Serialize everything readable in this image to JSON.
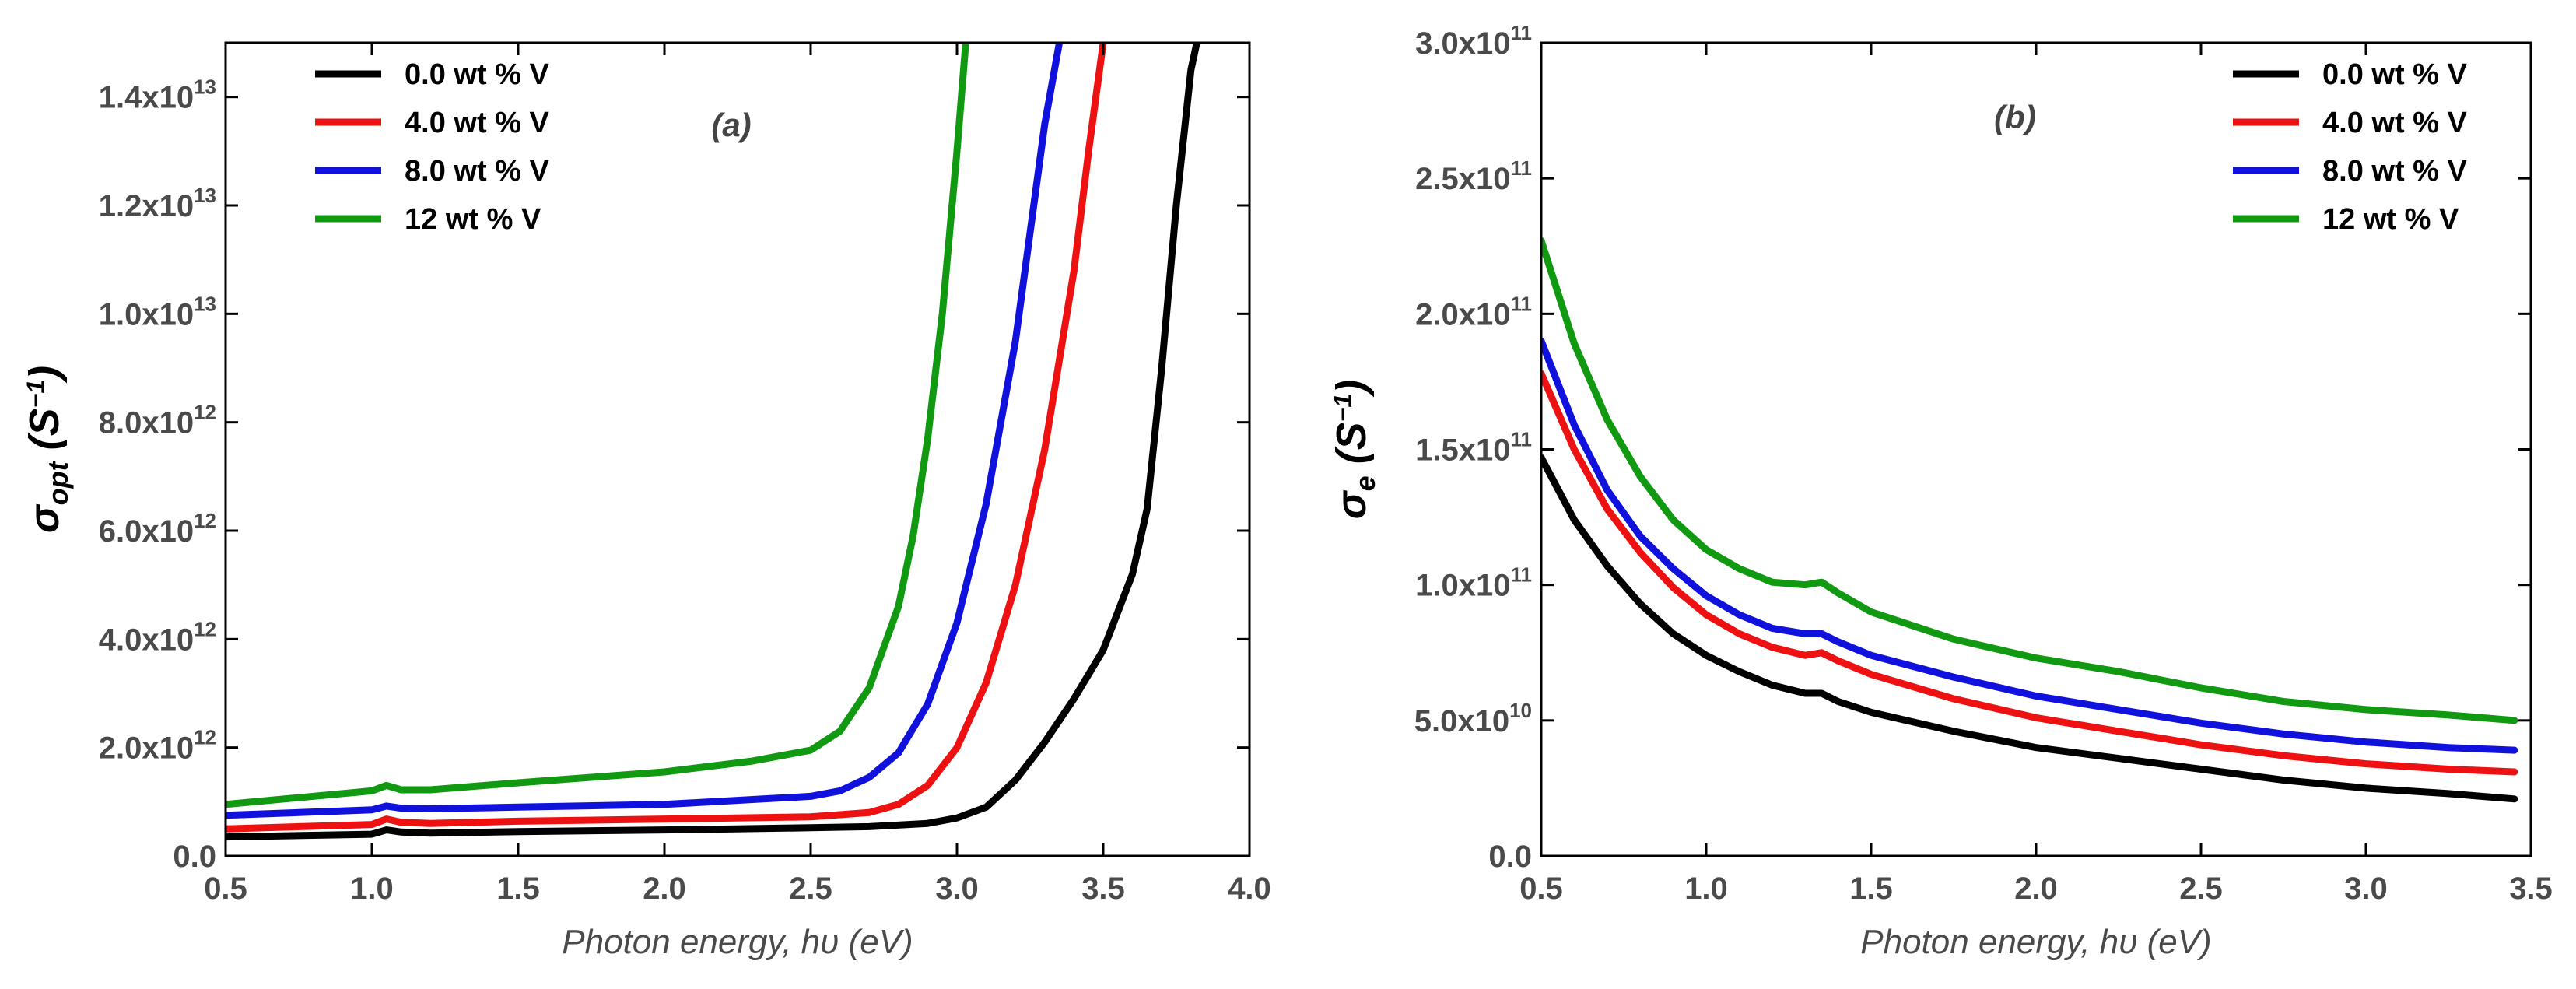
{
  "chart_data": [
    {
      "type": "line",
      "panel_label": "(a)",
      "title": "",
      "xlabel": "Photon energy, hυ (eV)",
      "ylabel": "σopt (S⁻¹)",
      "ylabel_main": "σ",
      "ylabel_sub": "opt",
      "ylabel_unit": "(S",
      "ylabel_unit_exp": "−1",
      "ylabel_unit_close": ")",
      "xlim": [
        0.5,
        4.0
      ],
      "ylim": [
        0,
        15000000000000
      ],
      "xticks": [
        {
          "v": 0.5,
          "label": "0.5"
        },
        {
          "v": 1.0,
          "label": "1.0"
        },
        {
          "v": 1.5,
          "label": "1.5"
        },
        {
          "v": 2.0,
          "label": "2.0"
        },
        {
          "v": 2.5,
          "label": "2.5"
        },
        {
          "v": 3.0,
          "label": "3.0"
        },
        {
          "v": 3.5,
          "label": "3.5"
        },
        {
          "v": 4.0,
          "label": "4.0"
        }
      ],
      "yticks": [
        {
          "v": 0,
          "mantissa": "0.0",
          "exp": ""
        },
        {
          "v": 2000000000000,
          "mantissa": "2.0x10",
          "exp": "12"
        },
        {
          "v": 4000000000000,
          "mantissa": "4.0x10",
          "exp": "12"
        },
        {
          "v": 6000000000000,
          "mantissa": "6.0x10",
          "exp": "12"
        },
        {
          "v": 8000000000000,
          "mantissa": "8.0x10",
          "exp": "12"
        },
        {
          "v": 10000000000000,
          "mantissa": "1.0x10",
          "exp": "13"
        },
        {
          "v": 12000000000000,
          "mantissa": "1.2x10",
          "exp": "13"
        },
        {
          "v": 14000000000000,
          "mantissa": "1.4x10",
          "exp": "13"
        }
      ],
      "legend_position": "top-left",
      "series": [
        {
          "name": "0.0 wt % V",
          "color": "#000000",
          "x": [
            0.5,
            1.0,
            1.05,
            1.1,
            1.2,
            1.5,
            2.0,
            2.5,
            2.7,
            2.9,
            3.0,
            3.1,
            3.2,
            3.3,
            3.4,
            3.5,
            3.6,
            3.65,
            3.7,
            3.75,
            3.8,
            3.82
          ],
          "y": [
            350000000000,
            400000000000,
            480000000000,
            440000000000,
            420000000000,
            450000000000,
            480000000000,
            520000000000,
            540000000000,
            600000000000,
            700000000000,
            900000000000,
            1400000000000,
            2100000000000,
            2900000000000,
            3800000000000,
            5200000000000,
            6400000000000,
            9000000000000,
            12000000000000,
            14500000000000,
            15000000000000
          ]
        },
        {
          "name": "4.0 wt % V",
          "color": "#ee1111",
          "x": [
            0.5,
            1.0,
            1.05,
            1.1,
            1.2,
            1.5,
            2.0,
            2.5,
            2.7,
            2.8,
            2.9,
            3.0,
            3.1,
            3.2,
            3.3,
            3.4,
            3.45,
            3.5
          ],
          "y": [
            500000000000,
            580000000000,
            680000000000,
            620000000000,
            600000000000,
            640000000000,
            680000000000,
            720000000000,
            800000000000,
            950000000000,
            1300000000000,
            2000000000000,
            3200000000000,
            5000000000000,
            7500000000000,
            10800000000000,
            13000000000000,
            15000000000000
          ]
        },
        {
          "name": "8.0 wt % V",
          "color": "#1111dd",
          "x": [
            0.5,
            1.0,
            1.05,
            1.1,
            1.2,
            1.5,
            2.0,
            2.5,
            2.6,
            2.7,
            2.8,
            2.9,
            3.0,
            3.1,
            3.2,
            3.25,
            3.3,
            3.35
          ],
          "y": [
            750000000000,
            850000000000,
            920000000000,
            880000000000,
            870000000000,
            900000000000,
            950000000000,
            1100000000000,
            1200000000000,
            1450000000000,
            1900000000000,
            2800000000000,
            4300000000000,
            6500000000000,
            9500000000000,
            11500000000000,
            13500000000000,
            15000000000000
          ]
        },
        {
          "name": "12  wt % V",
          "color": "#119911",
          "x": [
            0.5,
            1.0,
            1.05,
            1.1,
            1.2,
            1.5,
            2.0,
            2.3,
            2.5,
            2.6,
            2.7,
            2.8,
            2.85,
            2.9,
            2.95,
            3.0,
            3.03
          ],
          "y": [
            950000000000,
            1200000000000,
            1300000000000,
            1220000000000,
            1220000000000,
            1350000000000,
            1550000000000,
            1750000000000,
            1950000000000,
            2300000000000,
            3100000000000,
            4600000000000,
            5900000000000,
            7700000000000,
            10000000000000,
            13000000000000,
            15000000000000
          ]
        }
      ]
    },
    {
      "type": "line",
      "panel_label": "(b)",
      "title": "",
      "xlabel": "Photon energy, hυ (eV)",
      "ylabel": "σe (S⁻¹)",
      "ylabel_main": "σ",
      "ylabel_sub": "e",
      "ylabel_unit": "(S",
      "ylabel_unit_exp": "−1",
      "ylabel_unit_close": ")",
      "xlim": [
        0.5,
        3.5
      ],
      "ylim": [
        0,
        300000000000
      ],
      "xticks": [
        {
          "v": 0.5,
          "label": "0.5"
        },
        {
          "v": 1.0,
          "label": "1.0"
        },
        {
          "v": 1.5,
          "label": "1.5"
        },
        {
          "v": 2.0,
          "label": "2.0"
        },
        {
          "v": 2.5,
          "label": "2.5"
        },
        {
          "v": 3.0,
          "label": "3.0"
        },
        {
          "v": 3.5,
          "label": "3.5"
        }
      ],
      "yticks": [
        {
          "v": 0,
          "mantissa": "0.0",
          "exp": ""
        },
        {
          "v": 50000000000,
          "mantissa": "5.0x10",
          "exp": "10"
        },
        {
          "v": 100000000000,
          "mantissa": "1.0x10",
          "exp": "11"
        },
        {
          "v": 150000000000,
          "mantissa": "1.5x10",
          "exp": "11"
        },
        {
          "v": 200000000000,
          "mantissa": "2.0x10",
          "exp": "11"
        },
        {
          "v": 250000000000,
          "mantissa": "2.5x10",
          "exp": "11"
        },
        {
          "v": 300000000000,
          "mantissa": "3.0x10",
          "exp": "11"
        }
      ],
      "legend_position": "top-right",
      "series": [
        {
          "name": "0.0 wt % V",
          "color": "#000000",
          "x": [
            0.5,
            0.6,
            0.7,
            0.8,
            0.9,
            1.0,
            1.1,
            1.2,
            1.3,
            1.35,
            1.4,
            1.5,
            1.75,
            2.0,
            2.25,
            2.5,
            2.75,
            3.0,
            3.25,
            3.45
          ],
          "y": [
            147000000000,
            124000000000,
            107000000000,
            93000000000,
            82000000000,
            74000000000,
            68000000000,
            63000000000,
            60000000000,
            60000000000,
            57000000000,
            53000000000,
            46000000000,
            40000000000,
            36000000000,
            32000000000,
            28000000000,
            25000000000,
            23000000000,
            21000000000
          ]
        },
        {
          "name": "4.0 wt % V",
          "color": "#ee1111",
          "x": [
            0.5,
            0.6,
            0.7,
            0.8,
            0.9,
            1.0,
            1.1,
            1.2,
            1.3,
            1.35,
            1.4,
            1.5,
            1.75,
            2.0,
            2.25,
            2.5,
            2.75,
            3.0,
            3.25,
            3.45
          ],
          "y": [
            178000000000,
            150000000000,
            128000000000,
            112000000000,
            99000000000,
            89000000000,
            82000000000,
            77000000000,
            74000000000,
            75000000000,
            72000000000,
            67000000000,
            58000000000,
            51000000000,
            46000000000,
            41000000000,
            37000000000,
            34000000000,
            32000000000,
            31000000000
          ]
        },
        {
          "name": "8.0 wt % V",
          "color": "#1111dd",
          "x": [
            0.5,
            0.6,
            0.7,
            0.8,
            0.9,
            1.0,
            1.1,
            1.2,
            1.3,
            1.35,
            1.4,
            1.5,
            1.75,
            2.0,
            2.25,
            2.5,
            2.75,
            3.0,
            3.25,
            3.45
          ],
          "y": [
            190000000000,
            159000000000,
            135000000000,
            118000000000,
            106000000000,
            96000000000,
            89000000000,
            84000000000,
            82000000000,
            82000000000,
            79000000000,
            74000000000,
            66000000000,
            59000000000,
            54000000000,
            49000000000,
            45000000000,
            42000000000,
            40000000000,
            39000000000
          ]
        },
        {
          "name": "12  wt % V",
          "color": "#119911",
          "x": [
            0.5,
            0.6,
            0.7,
            0.8,
            0.9,
            1.0,
            1.1,
            1.2,
            1.3,
            1.35,
            1.4,
            1.5,
            1.75,
            2.0,
            2.25,
            2.5,
            2.75,
            3.0,
            3.25,
            3.45
          ],
          "y": [
            227000000000,
            189000000000,
            161000000000,
            140000000000,
            124000000000,
            113000000000,
            106000000000,
            101000000000,
            100000000000,
            101000000000,
            97000000000,
            90000000000,
            80000000000,
            73000000000,
            68000000000,
            62000000000,
            57000000000,
            54000000000,
            52000000000,
            50000000000
          ]
        }
      ]
    }
  ]
}
